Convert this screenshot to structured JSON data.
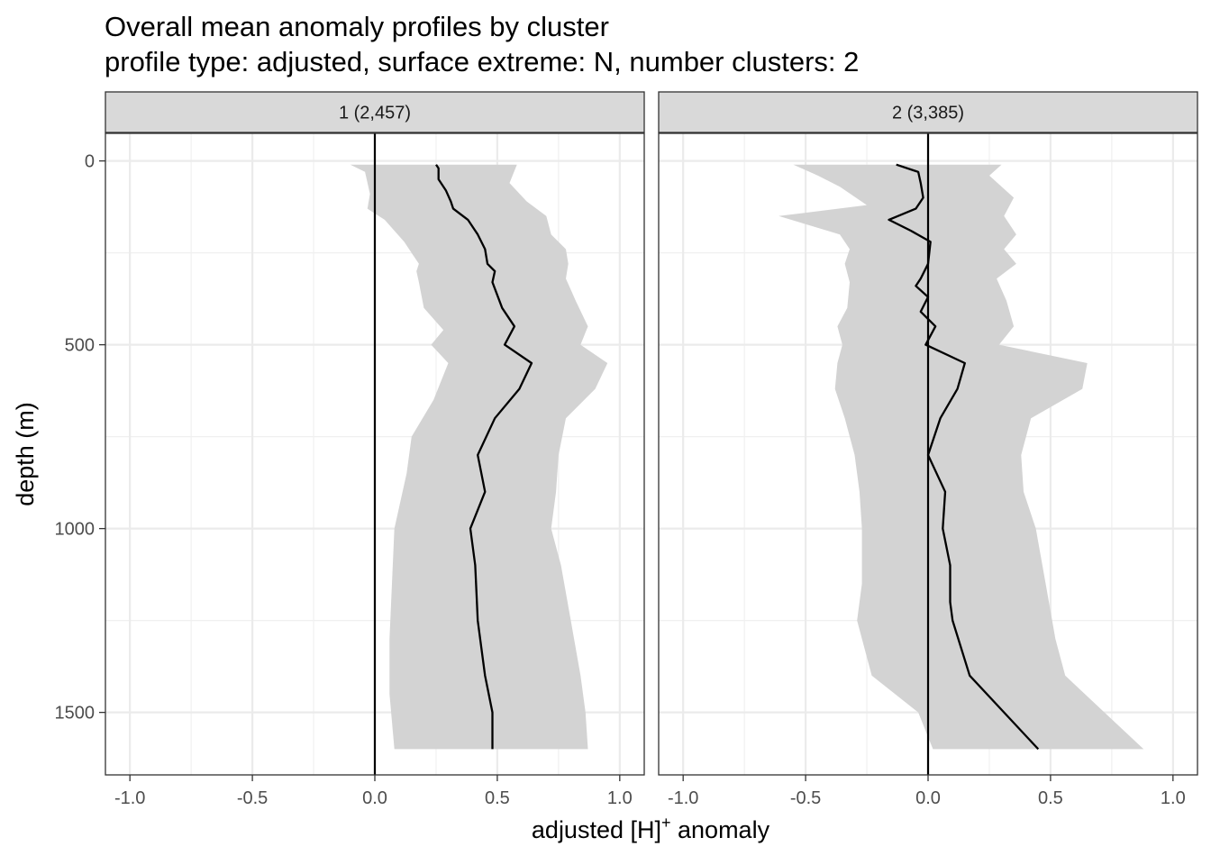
{
  "title": "Overall mean anomaly profiles by cluster",
  "subtitle": "profile type: adjusted, surface extreme: N, number clusters: 2",
  "chart_data": {
    "type": "line",
    "title": "Overall mean anomaly profiles by cluster",
    "subtitle": "profile type: adjusted, surface extreme: N, number clusters: 2",
    "xlabel": "adjusted [H]",
    "xlabel_superscript": "+",
    "xlabel_suffix": " anomaly",
    "ylabel": "depth (m)",
    "xlim": [
      -1.1,
      1.1
    ],
    "ylim": [
      1670,
      -75
    ],
    "y_reversed": true,
    "x_ticks": [
      -1.0,
      -0.5,
      0.0,
      0.5,
      1.0
    ],
    "x_tick_labels": [
      "-1.0",
      "-0.5",
      "0.0",
      "0.5",
      "1.0"
    ],
    "y_ticks": [
      0,
      500,
      1000,
      1500
    ],
    "y_tick_labels": [
      "0",
      "500",
      "1000",
      "1500"
    ],
    "grid": true,
    "reference_line_x": 0,
    "band_color": "#d3d3d3",
    "line_color": "#000000",
    "panels": [
      {
        "label": "1 (2,457)",
        "mean": [
          [
            0.25,
            10
          ],
          [
            0.26,
            20
          ],
          [
            0.26,
            50
          ],
          [
            0.29,
            80
          ],
          [
            0.31,
            110
          ],
          [
            0.32,
            130
          ],
          [
            0.38,
            160
          ],
          [
            0.42,
            200
          ],
          [
            0.45,
            240
          ],
          [
            0.46,
            280
          ],
          [
            0.49,
            300
          ],
          [
            0.48,
            330
          ],
          [
            0.52,
            400
          ],
          [
            0.57,
            450
          ],
          [
            0.53,
            500
          ],
          [
            0.64,
            550
          ],
          [
            0.59,
            620
          ],
          [
            0.49,
            700
          ],
          [
            0.42,
            800
          ],
          [
            0.45,
            900
          ],
          [
            0.39,
            1000
          ],
          [
            0.41,
            1100
          ],
          [
            0.42,
            1250
          ],
          [
            0.45,
            1400
          ],
          [
            0.48,
            1500
          ],
          [
            0.48,
            1600
          ]
        ],
        "band_upper": [
          [
            0.58,
            10
          ],
          [
            0.55,
            60
          ],
          [
            0.62,
            110
          ],
          [
            0.7,
            150
          ],
          [
            0.72,
            200
          ],
          [
            0.78,
            240
          ],
          [
            0.79,
            280
          ],
          [
            0.78,
            320
          ],
          [
            0.82,
            380
          ],
          [
            0.87,
            450
          ],
          [
            0.84,
            500
          ],
          [
            0.95,
            550
          ],
          [
            0.9,
            620
          ],
          [
            0.78,
            700
          ],
          [
            0.75,
            800
          ],
          [
            0.74,
            900
          ],
          [
            0.72,
            1000
          ],
          [
            0.76,
            1100
          ],
          [
            0.8,
            1250
          ],
          [
            0.84,
            1400
          ],
          [
            0.86,
            1500
          ],
          [
            0.87,
            1600
          ]
        ],
        "band_lower": [
          [
            -0.1,
            10
          ],
          [
            -0.04,
            30
          ],
          [
            -0.02,
            90
          ],
          [
            -0.03,
            130
          ],
          [
            0.04,
            160
          ],
          [
            0.12,
            220
          ],
          [
            0.16,
            260
          ],
          [
            0.18,
            280
          ],
          [
            0.17,
            300
          ],
          [
            0.18,
            330
          ],
          [
            0.2,
            400
          ],
          [
            0.28,
            460
          ],
          [
            0.23,
            500
          ],
          [
            0.3,
            550
          ],
          [
            0.24,
            650
          ],
          [
            0.15,
            750
          ],
          [
            0.13,
            850
          ],
          [
            0.08,
            1000
          ],
          [
            0.07,
            1150
          ],
          [
            0.06,
            1300
          ],
          [
            0.06,
            1450
          ],
          [
            0.08,
            1600
          ]
        ]
      },
      {
        "label": "2 (3,385)",
        "mean": [
          [
            -0.13,
            10
          ],
          [
            -0.04,
            30
          ],
          [
            -0.03,
            60
          ],
          [
            -0.02,
            100
          ],
          [
            -0.05,
            130
          ],
          [
            -0.16,
            160
          ],
          [
            -0.07,
            190
          ],
          [
            0.01,
            220
          ],
          [
            0.0,
            280
          ],
          [
            -0.03,
            320
          ],
          [
            -0.05,
            340
          ],
          [
            0.0,
            370
          ],
          [
            -0.03,
            410
          ],
          [
            0.03,
            450
          ],
          [
            -0.01,
            500
          ],
          [
            0.15,
            550
          ],
          [
            0.12,
            620
          ],
          [
            0.05,
            700
          ],
          [
            0.0,
            800
          ],
          [
            0.07,
            900
          ],
          [
            0.06,
            1000
          ],
          [
            0.09,
            1100
          ],
          [
            0.09,
            1200
          ],
          [
            0.1,
            1250
          ],
          [
            0.17,
            1400
          ],
          [
            0.45,
            1600
          ]
        ],
        "band_upper": [
          [
            0.3,
            10
          ],
          [
            0.25,
            40
          ],
          [
            0.35,
            100
          ],
          [
            0.31,
            150
          ],
          [
            0.36,
            200
          ],
          [
            0.31,
            240
          ],
          [
            0.36,
            280
          ],
          [
            0.28,
            320
          ],
          [
            0.32,
            380
          ],
          [
            0.35,
            450
          ],
          [
            0.29,
            500
          ],
          [
            0.65,
            550
          ],
          [
            0.63,
            620
          ],
          [
            0.42,
            700
          ],
          [
            0.38,
            800
          ],
          [
            0.39,
            900
          ],
          [
            0.44,
            1000
          ],
          [
            0.48,
            1150
          ],
          [
            0.52,
            1300
          ],
          [
            0.56,
            1400
          ],
          [
            0.72,
            1500
          ],
          [
            0.88,
            1600
          ]
        ],
        "band_lower": [
          [
            -0.55,
            10
          ],
          [
            -0.45,
            40
          ],
          [
            -0.36,
            70
          ],
          [
            -0.25,
            120
          ],
          [
            -0.61,
            150
          ],
          [
            -0.36,
            200
          ],
          [
            -0.32,
            240
          ],
          [
            -0.34,
            280
          ],
          [
            -0.32,
            330
          ],
          [
            -0.33,
            400
          ],
          [
            -0.37,
            450
          ],
          [
            -0.35,
            500
          ],
          [
            -0.37,
            550
          ],
          [
            -0.38,
            620
          ],
          [
            -0.34,
            700
          ],
          [
            -0.3,
            800
          ],
          [
            -0.28,
            900
          ],
          [
            -0.27,
            1000
          ],
          [
            -0.27,
            1150
          ],
          [
            -0.29,
            1250
          ],
          [
            -0.23,
            1400
          ],
          [
            -0.04,
            1500
          ],
          [
            0.02,
            1600
          ]
        ]
      }
    ]
  }
}
